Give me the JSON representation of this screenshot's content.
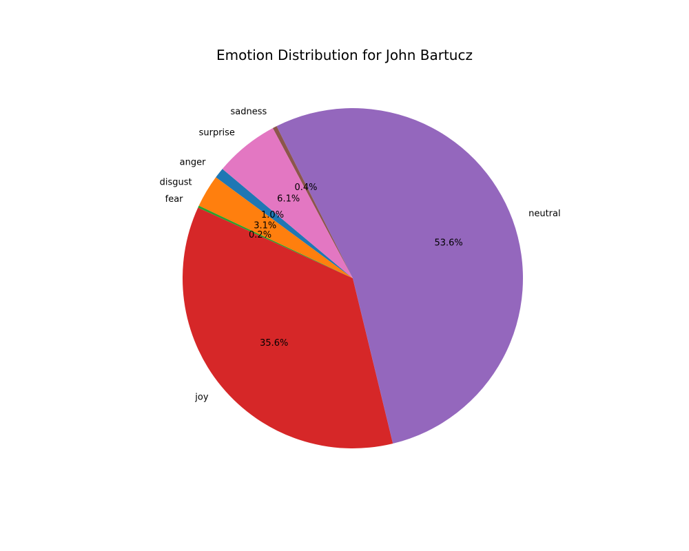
{
  "chart_data": {
    "type": "pie",
    "title": "Emotion Distribution for John Bartucz",
    "slices": [
      {
        "label": "anger",
        "value": 1.0,
        "pct_label": "1.0%",
        "color": "#1f77b4"
      },
      {
        "label": "disgust",
        "value": 3.1,
        "pct_label": "3.1%",
        "color": "#ff7f0e"
      },
      {
        "label": "fear",
        "value": 0.2,
        "pct_label": "0.2%",
        "color": "#2ca02c"
      },
      {
        "label": "joy",
        "value": 35.6,
        "pct_label": "35.6%",
        "color": "#d62728"
      },
      {
        "label": "neutral",
        "value": 53.6,
        "pct_label": "53.6%",
        "color": "#9467bd"
      },
      {
        "label": "sadness",
        "value": 0.4,
        "pct_label": "0.4%",
        "color": "#8c564b"
      },
      {
        "label": "surprise",
        "value": 6.1,
        "pct_label": "6.1%",
        "color": "#e377c2"
      }
    ],
    "start_angle_deg": 140,
    "direction": "counterclockwise"
  }
}
